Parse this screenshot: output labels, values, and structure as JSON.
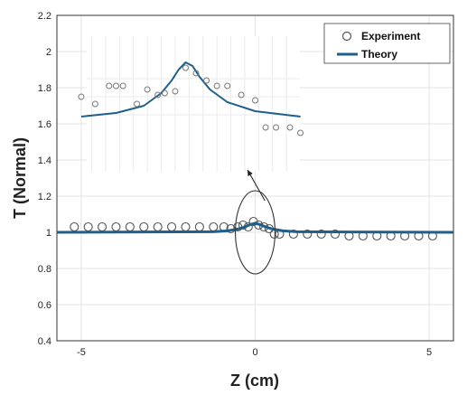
{
  "chart_data": {
    "type": "scatter",
    "xlabel": "Z (cm)",
    "ylabel": "T (Normal)",
    "xlim": [
      -5.7,
      5.7
    ],
    "ylim": [
      0.4,
      2.2
    ],
    "xticks": [
      -5,
      0,
      5
    ],
    "yticks": [
      0.4,
      0.6,
      0.8,
      1,
      1.2,
      1.4,
      1.6,
      1.8,
      2,
      2.2
    ],
    "grid": true,
    "legend": {
      "position": "top-right",
      "entries": [
        "Experiment",
        "Theory"
      ]
    },
    "colors": {
      "experiment": "#555555",
      "theory": "#1f5f8b",
      "grid": "#e3e3e3"
    },
    "series": [
      {
        "name": "Experiment",
        "mode": "markers",
        "marker": "open-circle",
        "x": [
          -5.2,
          -4.8,
          -4.4,
          -4.0,
          -3.6,
          -3.2,
          -2.8,
          -2.4,
          -2.0,
          -1.6,
          -1.2,
          -0.9,
          -0.7,
          -0.5,
          -0.35,
          -0.2,
          -0.05,
          0.1,
          0.25,
          0.4,
          0.55,
          0.7,
          1.1,
          1.5,
          1.9,
          2.3,
          2.7,
          3.1,
          3.5,
          3.9,
          4.3,
          4.7,
          5.1
        ],
        "y": [
          1.03,
          1.03,
          1.03,
          1.03,
          1.03,
          1.03,
          1.03,
          1.03,
          1.03,
          1.03,
          1.03,
          1.03,
          1.02,
          1.03,
          1.04,
          1.03,
          1.06,
          1.04,
          1.03,
          1.02,
          0.99,
          0.99,
          0.99,
          0.99,
          0.99,
          0.99,
          0.98,
          0.98,
          0.98,
          0.98,
          0.98,
          0.98,
          0.98
        ]
      },
      {
        "name": "Theory",
        "mode": "line",
        "x": [
          -5.7,
          -1.2,
          -0.8,
          -0.5,
          -0.3,
          -0.15,
          0,
          0.15,
          0.3,
          0.5,
          0.8,
          1.2,
          5.7
        ],
        "y": [
          1.0,
          1.003,
          1.008,
          1.018,
          1.03,
          1.042,
          1.05,
          1.042,
          1.03,
          1.018,
          1.008,
          1.003,
          1.0
        ]
      }
    ],
    "annotations": [
      {
        "type": "ellipse",
        "center": [
          0,
          1.0
        ],
        "radius": [
          0.57,
          0.23
        ]
      },
      {
        "type": "arrow",
        "from": [
          0.28,
          1.175
        ],
        "to": [
          -0.22,
          1.345
        ]
      }
    ],
    "inset": {
      "description": "magnified view of the peak region",
      "experiment": {
        "x": [
          -5.0,
          -4.6,
          -4.2,
          -4.0,
          -3.8,
          -3.4,
          -3.1,
          -2.8,
          -2.6,
          -2.3,
          -2.0,
          -1.7,
          -1.4,
          -1.1,
          -0.8,
          -0.4,
          0.0,
          0.3,
          0.6,
          1.0,
          1.3
        ],
        "y": [
          1.75,
          1.71,
          1.81,
          1.81,
          1.81,
          1.71,
          1.79,
          1.76,
          1.77,
          1.78,
          1.91,
          1.88,
          1.84,
          1.81,
          1.81,
          1.76,
          1.73,
          1.58,
          1.58,
          1.58,
          1.55
        ]
      },
      "theory": {
        "x": [
          -5.0,
          -4.0,
          -3.2,
          -2.7,
          -2.4,
          -2.2,
          -2.0,
          -1.8,
          -1.6,
          -1.3,
          -0.8,
          0.0,
          1.3
        ],
        "y": [
          1.64,
          1.66,
          1.7,
          1.77,
          1.84,
          1.9,
          1.94,
          1.92,
          1.86,
          1.79,
          1.72,
          1.67,
          1.64
        ]
      }
    }
  }
}
